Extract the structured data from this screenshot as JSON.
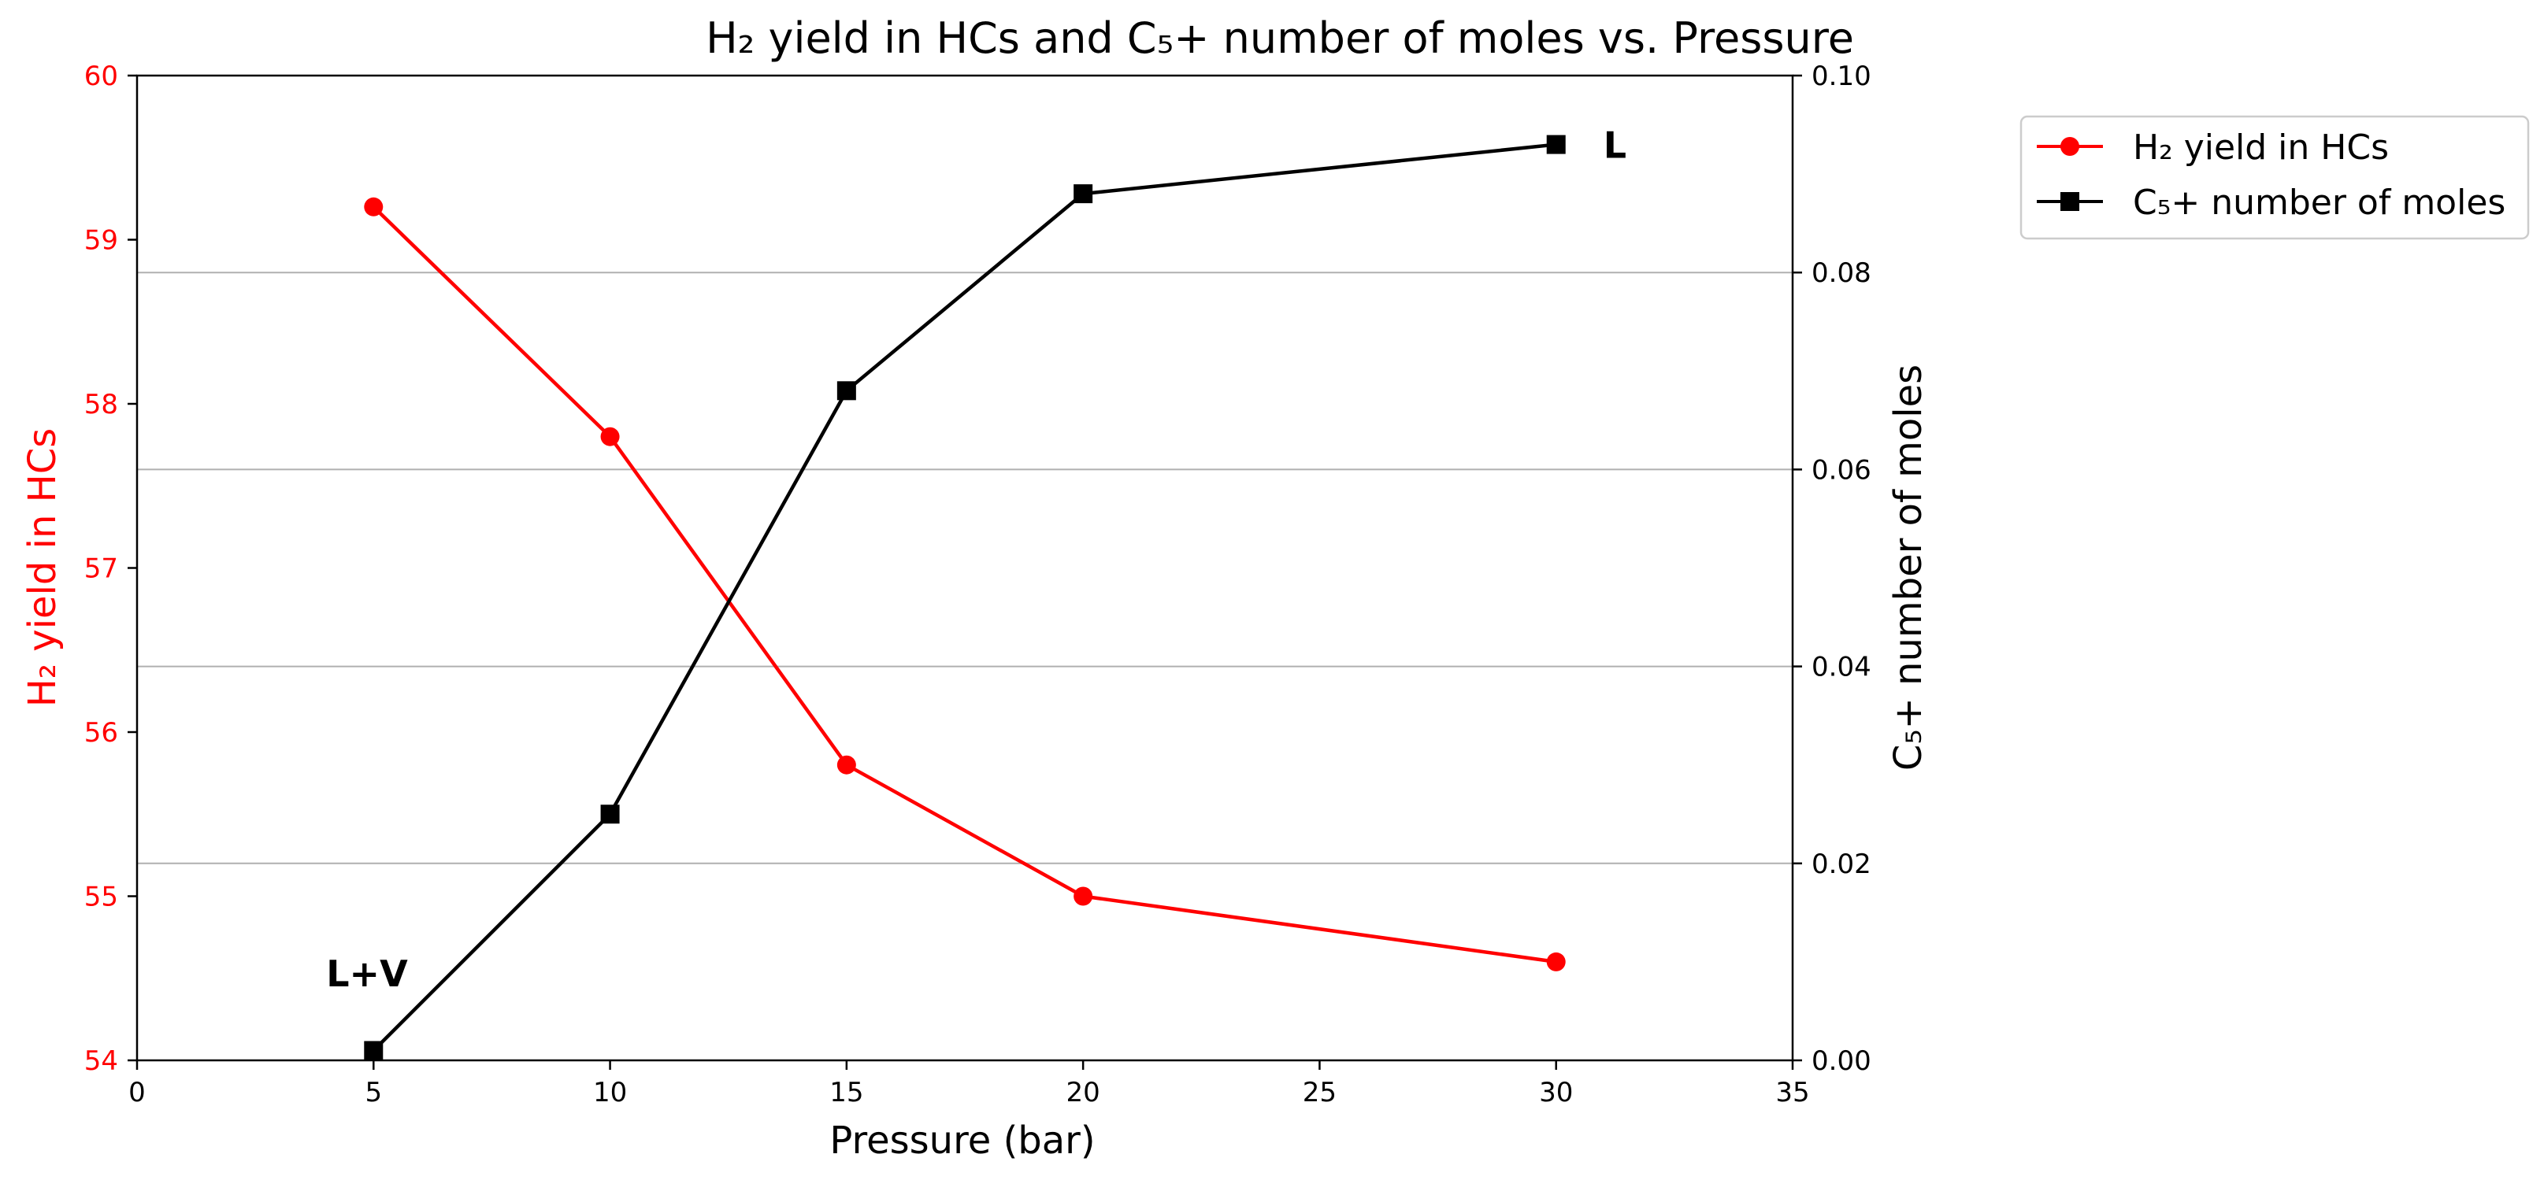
{
  "chart_data": {
    "type": "line",
    "title": "H₂ yield in HCs and C₅+ number of moles vs. Pressure",
    "xlabel": "Pressure (bar)",
    "ylabel_left": "H₂ yield in HCs",
    "ylabel_right": "C₅+ number of moles",
    "xlim": [
      0,
      35
    ],
    "ylim_left": [
      54,
      60
    ],
    "ylim_right": [
      0.0,
      0.1
    ],
    "x_ticks": [
      0,
      5,
      10,
      15,
      20,
      25,
      30,
      35
    ],
    "x_tick_labels": [
      "0",
      "5",
      "10",
      "15",
      "20",
      "25",
      "30",
      "35"
    ],
    "left_ticks": [
      54,
      55,
      56,
      57,
      58,
      59,
      60
    ],
    "left_tick_labels": [
      "54",
      "55",
      "56",
      "57",
      "58",
      "59",
      "60"
    ],
    "right_ticks": [
      0.0,
      0.02,
      0.04,
      0.06,
      0.08,
      0.1
    ],
    "right_tick_labels": [
      "0.00",
      "0.02",
      "0.04",
      "0.06",
      "0.08",
      "0.10"
    ],
    "grid": "horizontal (right axis)",
    "legend_position": "outside-top-right",
    "series": [
      {
        "name": "H₂ yield in HCs",
        "axis": "left",
        "color": "#ff0000",
        "marker": "circle",
        "x": [
          5,
          10,
          15,
          20,
          30
        ],
        "values": [
          59.2,
          57.8,
          55.8,
          55.0,
          54.6
        ]
      },
      {
        "name": "C₅+ number of moles",
        "axis": "right",
        "color": "#000000",
        "marker": "square",
        "x": [
          5,
          10,
          15,
          20,
          30
        ],
        "values": [
          0.001,
          0.025,
          0.068,
          0.088,
          0.093
        ]
      }
    ],
    "annotations": [
      {
        "text": "L+V",
        "x": 4,
        "y_left": 54.45
      },
      {
        "text": "L",
        "x": 31,
        "y_left": 59.5
      }
    ]
  }
}
